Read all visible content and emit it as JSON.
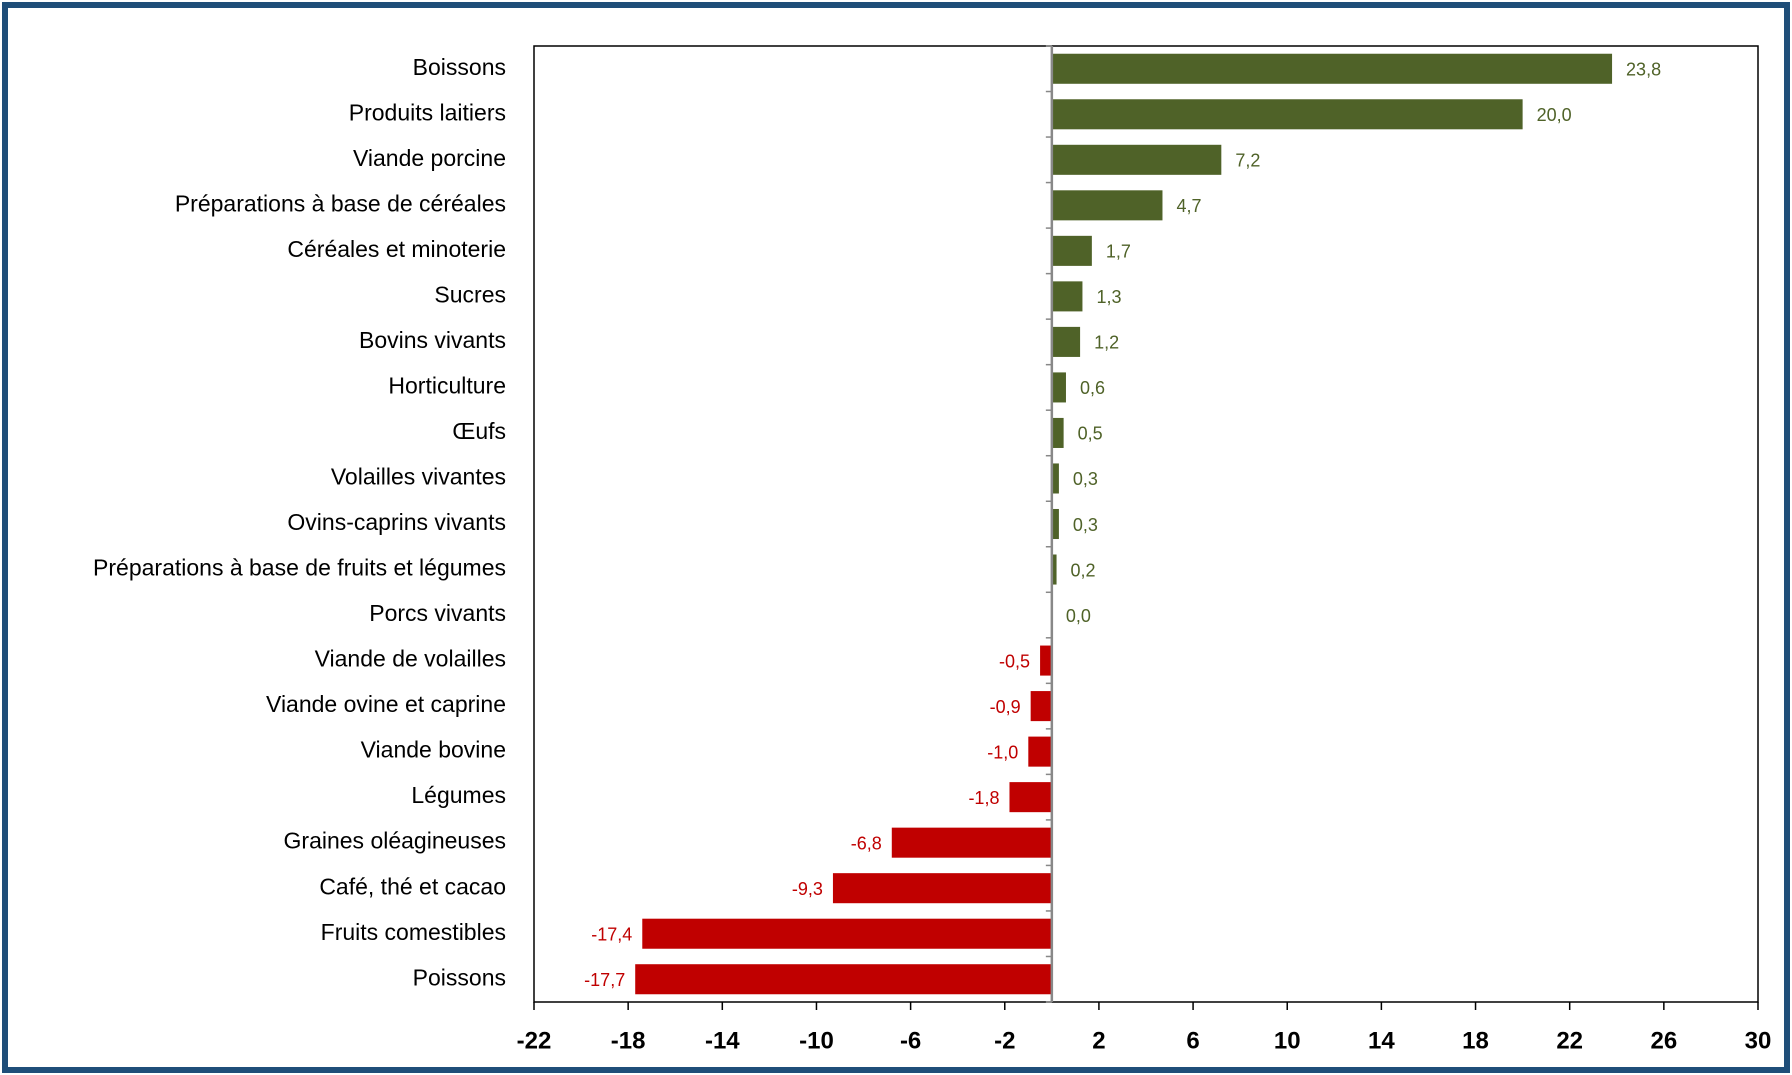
{
  "chart_data": {
    "type": "hbar",
    "categories": [
      "Boissons",
      "Produits laitiers",
      "Viande porcine",
      "Préparations à base de céréales",
      "Céréales et minoterie",
      "Sucres",
      "Bovins vivants",
      "Horticulture",
      "Œufs",
      "Volailles vivantes",
      "Ovins-caprins vivants",
      "Préparations à base de fruits et légumes",
      "Porcs vivants",
      "Viande de volailles",
      "Viande ovine et caprine",
      "Viande bovine",
      "Légumes",
      "Graines oléagineuses",
      "Café, thé et cacao",
      "Fruits comestibles",
      "Poissons"
    ],
    "values": [
      23.8,
      20.0,
      7.2,
      4.7,
      1.7,
      1.3,
      1.2,
      0.6,
      0.5,
      0.3,
      0.3,
      0.2,
      0.0,
      -0.5,
      -0.9,
      -1.0,
      -1.8,
      -6.8,
      -9.3,
      -17.4,
      -17.7
    ],
    "value_labels": [
      "23,8",
      "20,0",
      "7,2",
      "4,7",
      "1,7",
      "1,3",
      "1,2",
      "0,6",
      "0,5",
      "0,3",
      "0,3",
      "0,2",
      "0,0",
      "-0,5",
      "-0,9",
      "-1,0",
      "-1,8",
      "-6,8",
      "-9,3",
      "-17,4",
      "-17,7"
    ],
    "positive_color": "#4f6228",
    "negative_color": "#c00000",
    "xlim": [
      -22,
      30
    ],
    "xticks": [
      -22,
      -18,
      -14,
      -10,
      -6,
      -2,
      2,
      6,
      10,
      14,
      18,
      22,
      26,
      30
    ]
  }
}
